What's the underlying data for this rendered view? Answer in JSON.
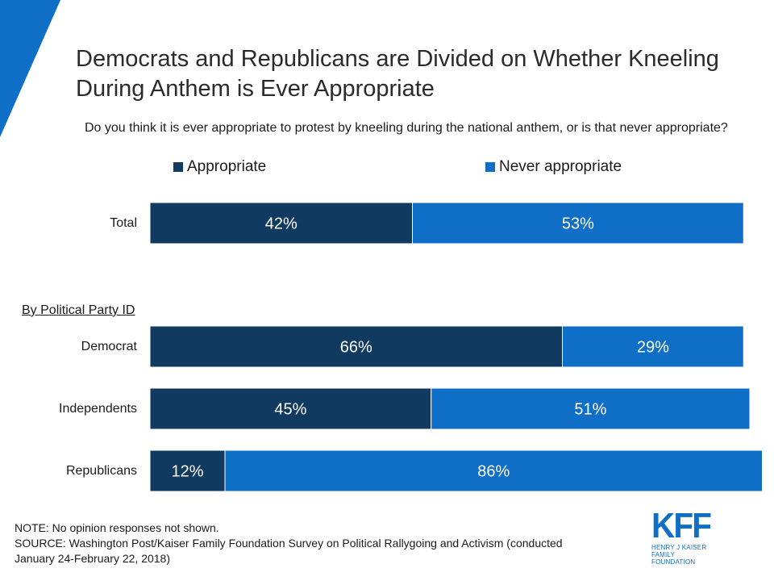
{
  "title": "Democrats and Republicans are Divided on Whether Kneeling During Anthem is Ever Appropriate",
  "question": "Do you think it is ever appropriate to protest by kneeling during the national anthem, or is that never appropriate?",
  "colors": {
    "appropriate": "#103a5f",
    "never_appropriate": "#0f6fc6",
    "accent": "#0f6fc6"
  },
  "legend": {
    "appropriate": "Appropriate",
    "never_appropriate": "Never appropriate"
  },
  "group_label": "By Political Party ID",
  "note": "NOTE: No opinion responses not shown.",
  "source": "SOURCE: Washington Post/Kaiser Family Foundation Survey on Political Rallygoing and Activism (conducted January 24-February 22, 2018)",
  "logo": {
    "mark": "KFF",
    "line1": "HENRY J KAISER",
    "line2": "FAMILY FOUNDATION"
  },
  "chart_data": {
    "type": "bar",
    "orientation": "horizontal",
    "stacked": true,
    "categories": [
      "Total",
      "Democrat",
      "Independents",
      "Republicans"
    ],
    "series": [
      {
        "name": "Appropriate",
        "values": [
          42,
          66,
          45,
          12
        ]
      },
      {
        "name": "Never appropriate",
        "values": [
          53,
          29,
          51,
          86
        ]
      }
    ],
    "data_labels": [
      [
        "42%",
        "66%",
        "45%",
        "12%"
      ],
      [
        "53%",
        "29%",
        "51%",
        "86%"
      ]
    ],
    "unit": "%",
    "legend_position": "top",
    "grid": false
  }
}
